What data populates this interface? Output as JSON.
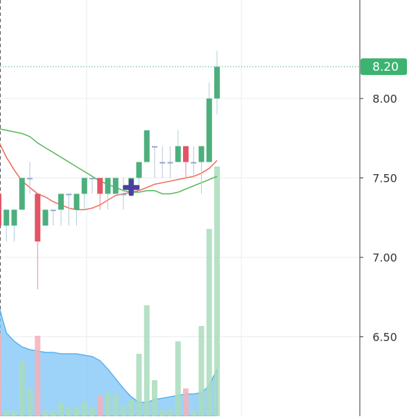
{
  "chart_data": {
    "type": "candlestick",
    "title": "",
    "xlabel": "",
    "ylabel": "",
    "ylim": [
      6.0,
      8.62
    ],
    "y_ticks": [
      "8.00",
      "7.50",
      "7.00",
      "6.50"
    ],
    "y_tick_values": [
      8.0,
      7.5,
      7.0,
      6.5
    ],
    "grid": true,
    "last_price_label": "8.20",
    "last_price": 8.2,
    "colors": {
      "up": "#26a69a",
      "up_body": "#4caf7d",
      "down": "#ef5350",
      "down_body": "#e45466",
      "flat": "#8fa8c8",
      "ma_fast": "#ef6f5f",
      "ma_slow": "#5cb85c",
      "volume_up": "#a9dcbc",
      "volume_down": "#f5b0b8",
      "volume_area": "#7cc4f5",
      "price_tag": "#3cb371",
      "marker": "#4a3f9f",
      "grid": "#e6ecf0"
    },
    "candles": [
      {
        "open": 7.4,
        "high": 7.4,
        "low": 7.1,
        "close": 7.2
      },
      {
        "open": 7.2,
        "high": 7.3,
        "low": 7.1,
        "close": 7.3
      },
      {
        "open": 7.2,
        "high": 7.3,
        "low": 7.1,
        "close": 7.3
      },
      {
        "open": 7.3,
        "high": 7.5,
        "low": 7.3,
        "close": 7.5
      },
      {
        "open": 7.5,
        "high": 7.6,
        "low": 7.4,
        "close": 7.5
      },
      {
        "open": 7.4,
        "high": 7.4,
        "low": 6.8,
        "close": 7.1
      },
      {
        "open": 7.2,
        "high": 7.3,
        "low": 7.2,
        "close": 7.3
      },
      {
        "open": 7.3,
        "high": 7.3,
        "low": 7.2,
        "close": 7.3
      },
      {
        "open": 7.3,
        "high": 7.4,
        "low": 7.2,
        "close": 7.4
      },
      {
        "open": 7.4,
        "high": 7.4,
        "low": 7.2,
        "close": 7.4
      },
      {
        "open": 7.3,
        "high": 7.4,
        "low": 7.2,
        "close": 7.4
      },
      {
        "open": 7.4,
        "high": 7.5,
        "low": 7.3,
        "close": 7.5
      },
      {
        "open": 7.5,
        "high": 7.5,
        "low": 7.4,
        "close": 7.5
      },
      {
        "open": 7.5,
        "high": 7.5,
        "low": 7.3,
        "close": 7.4
      },
      {
        "open": 7.4,
        "high": 7.5,
        "low": 7.3,
        "close": 7.5
      },
      {
        "open": 7.4,
        "high": 7.5,
        "low": 7.4,
        "close": 7.5
      },
      {
        "open": 7.4,
        "high": 7.5,
        "low": 7.3,
        "close": 7.4
      },
      {
        "open": 7.4,
        "high": 7.5,
        "low": 7.4,
        "close": 7.5
      },
      {
        "open": 7.5,
        "high": 7.6,
        "low": 7.4,
        "close": 7.6
      },
      {
        "open": 7.6,
        "high": 7.8,
        "low": 7.6,
        "close": 7.8
      },
      {
        "open": 7.7,
        "high": 7.7,
        "low": 7.5,
        "close": 7.7
      },
      {
        "open": 7.6,
        "high": 7.7,
        "low": 7.5,
        "close": 7.6
      },
      {
        "open": 7.6,
        "high": 7.7,
        "low": 7.5,
        "close": 7.6
      },
      {
        "open": 7.6,
        "high": 7.8,
        "low": 7.6,
        "close": 7.7
      },
      {
        "open": 7.7,
        "high": 7.7,
        "low": 7.5,
        "close": 7.6
      },
      {
        "open": 7.6,
        "high": 7.7,
        "low": 7.5,
        "close": 7.6
      },
      {
        "open": 7.6,
        "high": 7.7,
        "low": 7.4,
        "close": 7.7
      },
      {
        "open": 7.6,
        "high": 8.1,
        "low": 7.6,
        "close": 8.0
      },
      {
        "open": 8.0,
        "high": 8.3,
        "low": 7.9,
        "close": 8.2
      }
    ],
    "ma_fast": [
      7.73,
      7.63,
      7.55,
      7.48,
      7.44,
      7.4,
      7.38,
      7.35,
      7.33,
      7.31,
      7.3,
      7.3,
      7.31,
      7.33,
      7.36,
      7.39,
      7.4,
      7.41,
      7.42,
      7.44,
      7.46,
      7.47,
      7.48,
      7.49,
      7.5,
      7.51,
      7.53,
      7.56,
      7.61
    ],
    "ma_slow": [
      7.81,
      7.8,
      7.79,
      7.78,
      7.76,
      7.72,
      7.69,
      7.66,
      7.63,
      7.6,
      7.57,
      7.54,
      7.51,
      7.48,
      7.46,
      7.44,
      7.42,
      7.41,
      7.41,
      7.42,
      7.42,
      7.4,
      7.4,
      7.41,
      7.43,
      7.45,
      7.47,
      7.49,
      7.51
    ],
    "volume": [
      0.6,
      0.04,
      0.04,
      0.4,
      0.2,
      0.58,
      0.04,
      0.04,
      0.1,
      0.06,
      0.06,
      0.1,
      0.06,
      0.15,
      0.17,
      0.16,
      0.08,
      0.12,
      0.45,
      0.8,
      0.26,
      0.05,
      0.05,
      0.54,
      0.2,
      0.04,
      0.65,
      1.35,
      1.8
    ],
    "volume_area": [
      0.8,
      0.6,
      0.54,
      0.5,
      0.48,
      0.47,
      0.46,
      0.46,
      0.45,
      0.45,
      0.45,
      0.44,
      0.43,
      0.4,
      0.34,
      0.27,
      0.2,
      0.14,
      0.1,
      0.1,
      0.12,
      0.13,
      0.14,
      0.15,
      0.16,
      0.16,
      0.17,
      0.22,
      0.34
    ],
    "marker": {
      "index": 17,
      "value": 7.44,
      "symbol": "cross"
    }
  }
}
